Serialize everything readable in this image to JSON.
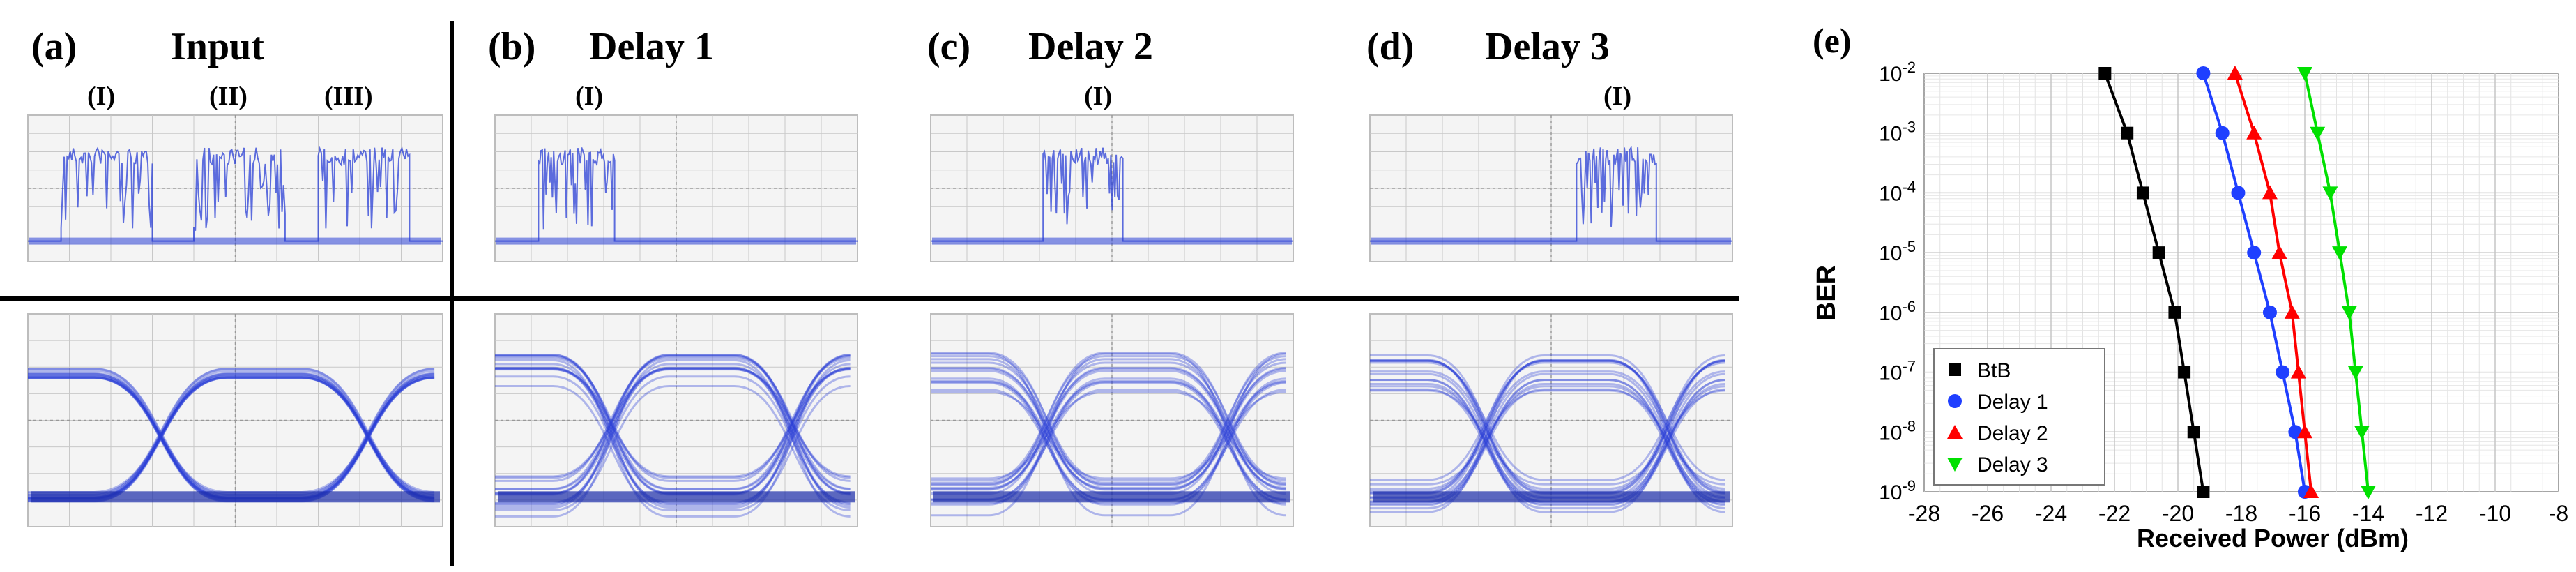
{
  "panels": [
    {
      "letter": "(a)",
      "title": "Input",
      "pulse_labels": [
        "(I)",
        "(II)",
        "(III)"
      ]
    },
    {
      "letter": "(b)",
      "title": "Delay 1",
      "pulse_labels": [
        "(I)"
      ]
    },
    {
      "letter": "(c)",
      "title": "Delay 2",
      "pulse_labels": [
        "(I)"
      ]
    },
    {
      "letter": "(d)",
      "title": "Delay 3",
      "pulse_labels": [
        "(I)"
      ]
    }
  ],
  "ber_panel_letter": "(e)",
  "colors": {
    "trace": "#2a3fd6",
    "scope_bg": "#f4f4f4",
    "scope_grid": "#c8c8c8",
    "btb": "#000000",
    "delay1": "#1f3fff",
    "delay2": "#ff0000",
    "delay3": "#00e000"
  },
  "chart_data": {
    "type": "line",
    "title": "",
    "xlabel": "Received Power (dBm)",
    "ylabel": "BER",
    "xlim": [
      -28,
      -8
    ],
    "x_ticks": [
      -28,
      -26,
      -24,
      -22,
      -20,
      -18,
      -16,
      -14,
      -12,
      -10,
      -8
    ],
    "y_scale": "log",
    "ylim": [
      1e-09,
      0.01
    ],
    "y_ticks": [
      {
        "value": 0.01,
        "base": "10",
        "exp": "-2"
      },
      {
        "value": 0.001,
        "base": "10",
        "exp": "-3"
      },
      {
        "value": 0.0001,
        "base": "10",
        "exp": "-4"
      },
      {
        "value": 1e-05,
        "base": "10",
        "exp": "-5"
      },
      {
        "value": 1e-06,
        "base": "10",
        "exp": "-6"
      },
      {
        "value": 1e-07,
        "base": "10",
        "exp": "-7"
      },
      {
        "value": 1e-08,
        "base": "10",
        "exp": "-8"
      },
      {
        "value": 1e-09,
        "base": "10",
        "exp": "-9"
      }
    ],
    "grid": true,
    "legend_position": "bottom-left",
    "series": [
      {
        "name": "BtB",
        "marker": "square",
        "color": "#000000",
        "x": [
          -22.3,
          -21.6,
          -21.1,
          -20.6,
          -20.1,
          -19.8,
          -19.5,
          -19.2
        ],
        "y": [
          0.01,
          0.001,
          0.0001,
          1e-05,
          1e-06,
          1e-07,
          1e-08,
          1e-09
        ]
      },
      {
        "name": "Delay 1",
        "marker": "circle",
        "color": "#1f3fff",
        "x": [
          -19.2,
          -18.6,
          -18.1,
          -17.6,
          -17.1,
          -16.7,
          -16.3,
          -16.0
        ],
        "y": [
          0.01,
          0.001,
          0.0001,
          1e-05,
          1e-06,
          1e-07,
          1e-08,
          1e-09
        ]
      },
      {
        "name": "Delay 2",
        "marker": "triangle-up",
        "color": "#ff0000",
        "x": [
          -18.2,
          -17.6,
          -17.1,
          -16.8,
          -16.4,
          -16.2,
          -16.0,
          -15.8
        ],
        "y": [
          0.01,
          0.001,
          0.0001,
          1e-05,
          1e-06,
          1e-07,
          1e-08,
          1e-09
        ]
      },
      {
        "name": "Delay 3",
        "marker": "triangle-down",
        "color": "#00e000",
        "x": [
          -16.0,
          -15.6,
          -15.2,
          -14.9,
          -14.6,
          -14.4,
          -14.2,
          -14.0
        ],
        "y": [
          0.01,
          0.001,
          0.0001,
          1e-05,
          1e-06,
          1e-07,
          1e-08,
          1e-09
        ]
      }
    ]
  }
}
